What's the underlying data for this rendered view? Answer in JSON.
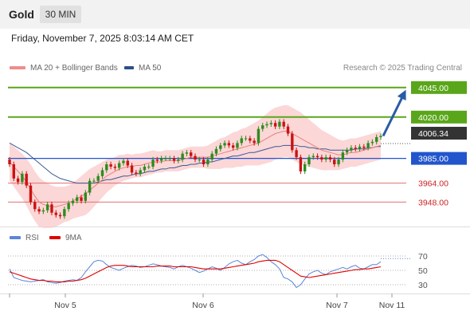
{
  "header": {
    "title": "Gold",
    "timeframe": "30 MIN"
  },
  "datetime": "Friday, November 7, 2025 8:03:14 AM CET",
  "legend": {
    "items": [
      {
        "label": "MA 20 + Bollinger Bands",
        "color": "#f08c8c"
      },
      {
        "label": "MA 50",
        "color": "#2c4f8a"
      }
    ],
    "source": "Research © 2025 Trading Central"
  },
  "rsi_legend": {
    "items": [
      {
        "label": "RSI",
        "color": "#5b86d6"
      },
      {
        "label": "9MA",
        "color": "#e00000"
      }
    ]
  },
  "colors": {
    "up": "#2e8b1e",
    "down": "#cc1111",
    "resistance": "#5aa61a",
    "pivot": "#2255cc",
    "support": "#e07070",
    "bands": "#f9c9c9",
    "arrow": "#2a5aa6",
    "current": "#333333"
  },
  "chart_data": [
    {
      "type": "candlestick",
      "x_ticks": [
        "Nov 5",
        "Nov 6",
        "Nov 7",
        "Nov 11"
      ],
      "ylim": [
        3930,
        4055
      ],
      "current_price": {
        "label": "4006.34",
        "value": 4006.34
      },
      "levels": [
        {
          "label": "4045.00",
          "value": 4045,
          "kind": "resistance"
        },
        {
          "label": "4020.00",
          "value": 4020,
          "kind": "resistance"
        },
        {
          "label": "3985.00",
          "value": 3985,
          "kind": "pivot"
        },
        {
          "label": "3964.00",
          "value": 3964,
          "kind": "support"
        },
        {
          "label": "3948.00",
          "value": 3948,
          "kind": "support"
        }
      ],
      "projection": {
        "from": 4004,
        "to": 4045
      },
      "closes": [
        3980,
        3968,
        3965,
        3972,
        3962,
        3948,
        3942,
        3940,
        3941,
        3946,
        3939,
        3937,
        3936,
        3942,
        3947,
        3949,
        3952,
        3949,
        3956,
        3966,
        3966,
        3970,
        3975,
        3980,
        3978,
        3977,
        3981,
        3983,
        3979,
        3973,
        3972,
        3975,
        3978,
        3978,
        3984,
        3983,
        3985,
        3985,
        3985,
        3983,
        3984,
        3989,
        3990,
        3987,
        3984,
        3984,
        3980,
        3984,
        3989,
        3993,
        3996,
        3998,
        3996,
        3994,
        3998,
        4002,
        4002,
        4000,
        3998,
        4010,
        4013,
        4014,
        4015,
        4012,
        4016,
        4012,
        4006,
        3992,
        3986,
        3974,
        3980,
        3986,
        3987,
        3986,
        3984,
        3986,
        3984,
        3980,
        3984,
        3990,
        3992,
        3994,
        3993,
        3995,
        3994,
        3998,
        3999,
        4003,
        4004
      ],
      "ma20": [
        3982,
        3978,
        3974,
        3970,
        3965,
        3959,
        3953,
        3948,
        3946,
        3945,
        3944,
        3944,
        3945,
        3946,
        3947,
        3949,
        3951,
        3953,
        3955,
        3958,
        3961,
        3964,
        3967,
        3970,
        3972,
        3974,
        3976,
        3977,
        3978,
        3978,
        3979,
        3979,
        3980,
        3981,
        3982,
        3982,
        3982,
        3983,
        3983,
        3983,
        3983,
        3984,
        3985,
        3986,
        3986,
        3986,
        3986,
        3986,
        3987,
        3988,
        3989,
        3990,
        3991,
        3992,
        3993,
        3994,
        3995,
        3996,
        3997,
        3998,
        4000,
        4002,
        4004,
        4006,
        4007,
        4008,
        4008,
        4006,
        4004,
        4002,
        4000,
        3998,
        3996,
        3994,
        3992,
        3991,
        3990,
        3989,
        3988,
        3988,
        3989,
        3990,
        3990,
        3991,
        3992,
        3993,
        3994,
        3995,
        3996
      ],
      "ma50": [
        3998,
        3996,
        3994,
        3992,
        3990,
        3987,
        3984,
        3981,
        3978,
        3975,
        3972,
        3970,
        3968,
        3967,
        3966,
        3965,
        3964,
        3964,
        3964,
        3964,
        3964,
        3965,
        3966,
        3967,
        3967,
        3968,
        3969,
        3970,
        3970,
        3971,
        3972,
        3972,
        3973,
        3974,
        3974,
        3975,
        3976,
        3976,
        3977,
        3977,
        3978,
        3979,
        3979,
        3980,
        3980,
        3981,
        3981,
        3982,
        3982,
        3983,
        3984,
        3985,
        3986,
        3987,
        3987,
        3988,
        3989,
        3990,
        3990,
        3991,
        3992,
        3993,
        3994,
        3995,
        3995,
        3996,
        3996,
        3996,
        3996,
        3995,
        3995,
        3994,
        3994,
        3993,
        3993,
        3993,
        3992,
        3992,
        3992,
        3992,
        3992,
        3992,
        3993,
        3993,
        3993,
        3994,
        3994,
        3995,
        3995
      ],
      "bb_width": [
        16,
        17,
        18,
        19,
        20,
        21,
        21,
        21,
        20,
        19,
        18,
        17,
        16,
        15,
        15,
        15,
        16,
        17,
        18,
        18,
        17,
        16,
        15,
        14,
        13,
        12,
        12,
        11,
        11,
        10,
        10,
        10,
        10,
        10,
        10,
        9,
        9,
        9,
        9,
        9,
        9,
        9,
        9,
        9,
        9,
        9,
        9,
        10,
        11,
        12,
        13,
        13,
        14,
        15,
        15,
        16,
        16,
        17,
        18,
        19,
        20,
        21,
        22,
        22,
        22,
        22,
        22,
        22,
        22,
        22,
        21,
        20,
        19,
        18,
        17,
        16,
        15,
        14,
        13,
        12,
        12,
        12,
        12,
        12,
        12,
        12,
        12,
        12,
        12
      ]
    },
    {
      "type": "line",
      "name": "RSI",
      "ylim": [
        20,
        80
      ],
      "y_ticks": [
        70,
        50,
        30
      ],
      "rsi": [
        52,
        40,
        38,
        36,
        35,
        34,
        35,
        36,
        37,
        34,
        33,
        32,
        33,
        35,
        36,
        37,
        36,
        40,
        48,
        55,
        62,
        64,
        63,
        58,
        54,
        52,
        50,
        53,
        55,
        57,
        56,
        54,
        55,
        57,
        59,
        58,
        56,
        55,
        54,
        52,
        55,
        57,
        55,
        53,
        50,
        47,
        49,
        52,
        55,
        53,
        50,
        54,
        59,
        62,
        64,
        60,
        58,
        62,
        65,
        70,
        72,
        68,
        62,
        58,
        52,
        40,
        38,
        34,
        26,
        30,
        38,
        45,
        48,
        50,
        46,
        44,
        48,
        50,
        52,
        54,
        52,
        55,
        57,
        53,
        52,
        55,
        58,
        58,
        62
      ],
      "rsi_ma": [
        48,
        46,
        44,
        42,
        40,
        38,
        37,
        36,
        36,
        35,
        35,
        34,
        34,
        34,
        35,
        35,
        36,
        37,
        39,
        42,
        45,
        48,
        51,
        54,
        56,
        57,
        57,
        57,
        56,
        55,
        55,
        55,
        55,
        55,
        55,
        56,
        56,
        56,
        56,
        55,
        55,
        55,
        55,
        55,
        54,
        53,
        52,
        52,
        52,
        52,
        52,
        53,
        54,
        55,
        56,
        57,
        58,
        59,
        60,
        62,
        63,
        64,
        64,
        64,
        62,
        58,
        54,
        50,
        46,
        42,
        41,
        40,
        41,
        42,
        43,
        44,
        45,
        46,
        47,
        48,
        49,
        50,
        51,
        51,
        52,
        52,
        53,
        54,
        55
      ]
    }
  ]
}
